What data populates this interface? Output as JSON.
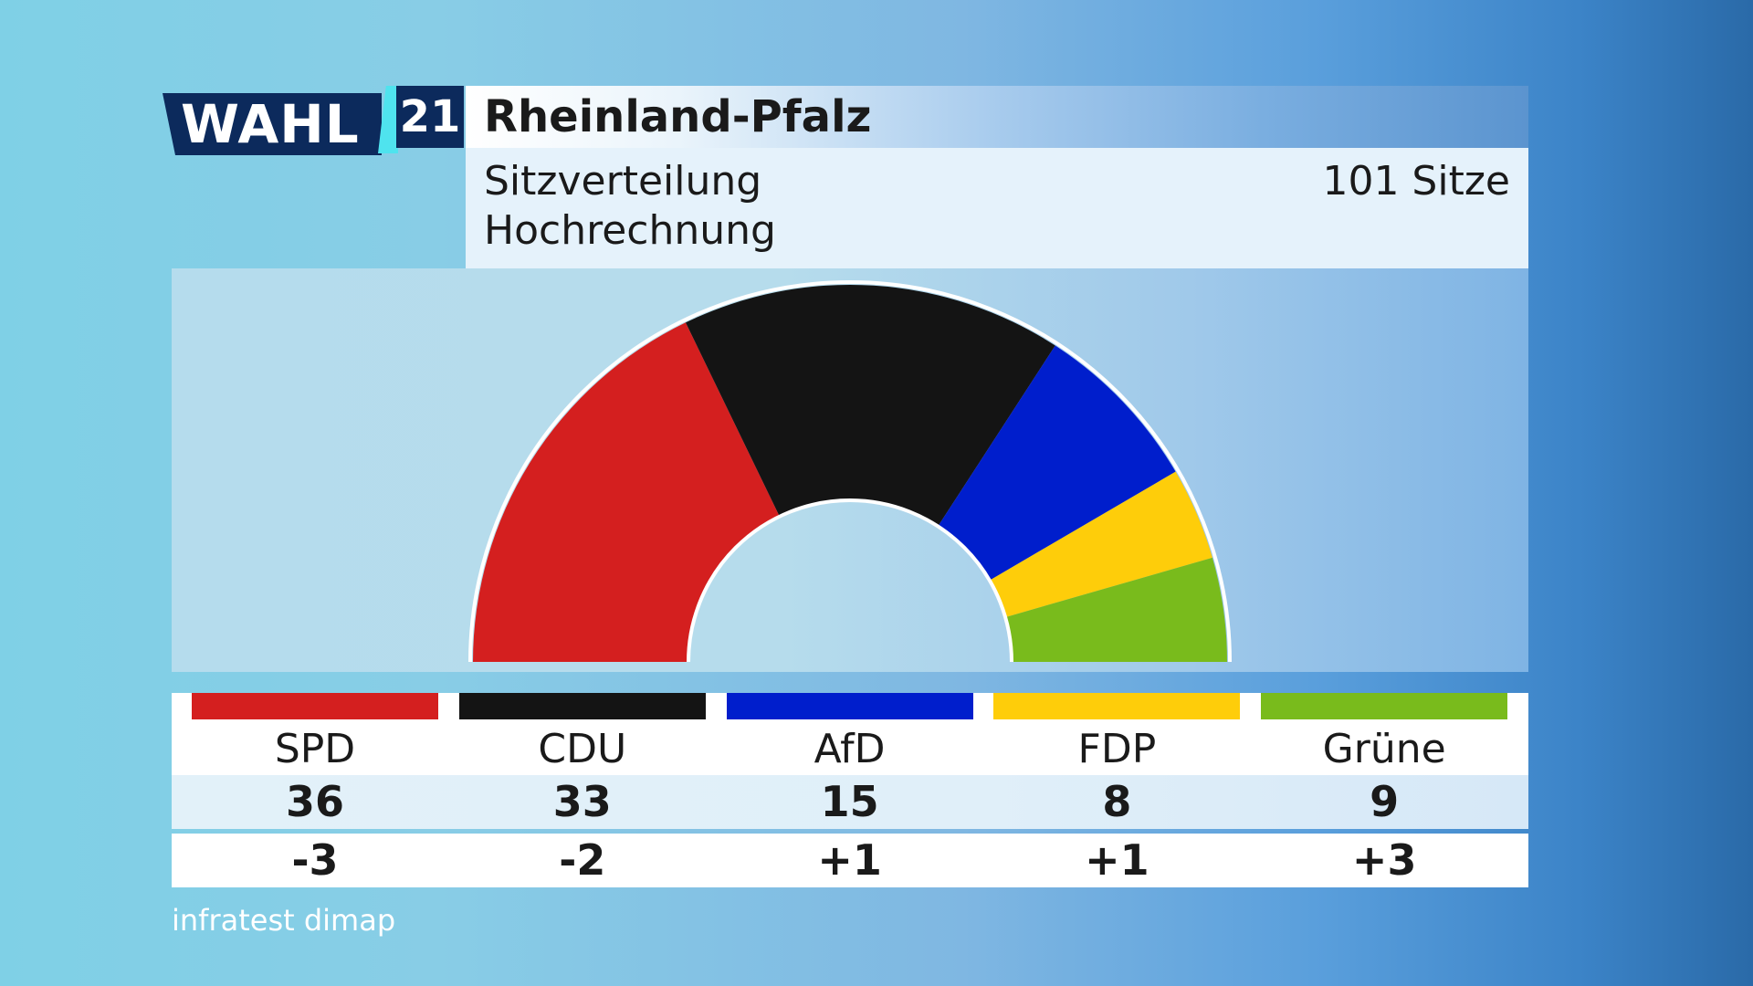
{
  "logo": {
    "wahl": "WAHL",
    "year": "21"
  },
  "header": {
    "title": "Rheinland-Pfalz",
    "subtitle_line1": "Sitzverteilung",
    "subtitle_line2": "Hochrechnung",
    "seats_total": "101 Sitze"
  },
  "source": "infratest dimap",
  "chart_data": {
    "type": "pie",
    "variant": "parliament-semicircle",
    "title": "Rheinland-Pfalz",
    "subtitle": "Sitzverteilung Hochrechnung",
    "total_seats": 101,
    "total_label": "101 Sitze",
    "categories": [
      "SPD",
      "CDU",
      "AfD",
      "FDP",
      "Grüne"
    ],
    "values": [
      36,
      33,
      15,
      8,
      9
    ],
    "changes": [
      "-3",
      "-2",
      "+1",
      "+1",
      "+3"
    ],
    "colors": [
      "#d41f1f",
      "#141414",
      "#001ecc",
      "#fecd0a",
      "#79bb1c"
    ],
    "legend_placement": "bottom"
  }
}
